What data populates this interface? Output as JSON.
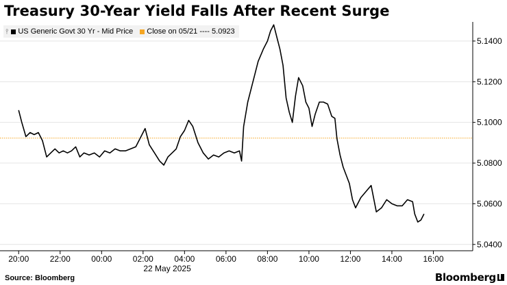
{
  "chart_data": {
    "type": "line",
    "title": "Treasury 30-Year Yield Falls After Recent Surge",
    "date_label": "22 May 2025",
    "source": "Source: Bloomberg",
    "brand": "Bloomberg",
    "legend": [
      {
        "label": "US Generic Govt 30 Yr - Mid Price",
        "color": "#000000"
      },
      {
        "label": "Close on 05/21 ---- 5.0923",
        "color": "#f5a623"
      }
    ],
    "x_unit": "hours relative to 22 May 2025 00:00",
    "x_ticks": [
      {
        "x": -4,
        "label": "20:00"
      },
      {
        "x": -2,
        "label": "22:00"
      },
      {
        "x": 0,
        "label": "00:00"
      },
      {
        "x": 2,
        "label": "02:00"
      },
      {
        "x": 4,
        "label": "04:00"
      },
      {
        "x": 6,
        "label": "06:00"
      },
      {
        "x": 8,
        "label": "08:00"
      },
      {
        "x": 10,
        "label": "10:00"
      },
      {
        "x": 12,
        "label": "12:00"
      },
      {
        "x": 14,
        "label": "14:00"
      },
      {
        "x": 16,
        "label": "16:00"
      }
    ],
    "y_ticks": [
      {
        "y": 5.14,
        "label": "5.1400"
      },
      {
        "y": 5.12,
        "label": "5.1200"
      },
      {
        "y": 5.1,
        "label": "5.1000"
      },
      {
        "y": 5.08,
        "label": "5.0800"
      },
      {
        "y": 5.06,
        "label": "5.0600"
      },
      {
        "y": 5.04,
        "label": "5.0400"
      }
    ],
    "xlim": [
      -4.9,
      17.9
    ],
    "ylim": [
      5.0369,
      5.1494
    ],
    "y_axis_side": "right",
    "grid": "horizontal",
    "reference_line": {
      "y": 5.0923,
      "color": "#f5a623",
      "style": "dotted"
    },
    "series": [
      {
        "name": "US Generic Govt 30 Yr - Mid Price",
        "color": "#000000",
        "x": [
          -4.0,
          -3.85,
          -3.65,
          -3.45,
          -3.25,
          -3.05,
          -2.85,
          -2.65,
          -2.45,
          -2.25,
          -2.05,
          -1.85,
          -1.65,
          -1.45,
          -1.25,
          -1.05,
          -0.85,
          -0.6,
          -0.35,
          -0.1,
          0.15,
          0.4,
          0.65,
          0.9,
          1.15,
          1.4,
          1.65,
          1.9,
          2.1,
          2.3,
          2.55,
          2.8,
          3.0,
          3.2,
          3.4,
          3.6,
          3.8,
          4.0,
          4.2,
          4.4,
          4.65,
          4.9,
          5.15,
          5.4,
          5.65,
          5.9,
          6.15,
          6.4,
          6.65,
          6.75,
          6.85,
          7.05,
          7.3,
          7.55,
          7.8,
          8.0,
          8.15,
          8.3,
          8.45,
          8.6,
          8.75,
          8.9,
          9.05,
          9.2,
          9.35,
          9.5,
          9.7,
          9.85,
          10.0,
          10.15,
          10.3,
          10.5,
          10.7,
          10.9,
          11.1,
          11.25,
          11.35,
          11.5,
          11.65,
          11.8,
          11.95,
          12.1,
          12.25,
          12.5,
          12.75,
          13.0,
          13.25,
          13.5,
          13.75,
          14.0,
          14.25,
          14.5,
          14.75,
          15.0,
          15.1,
          15.25,
          15.4,
          15.55
        ],
        "y": [
          5.106,
          5.1,
          5.093,
          5.095,
          5.094,
          5.095,
          5.091,
          5.083,
          5.085,
          5.087,
          5.085,
          5.086,
          5.085,
          5.086,
          5.088,
          5.083,
          5.085,
          5.084,
          5.085,
          5.083,
          5.086,
          5.085,
          5.087,
          5.086,
          5.086,
          5.087,
          5.088,
          5.093,
          5.097,
          5.089,
          5.085,
          5.081,
          5.079,
          5.083,
          5.085,
          5.087,
          5.093,
          5.096,
          5.101,
          5.098,
          5.09,
          5.085,
          5.082,
          5.084,
          5.083,
          5.085,
          5.086,
          5.085,
          5.086,
          5.081,
          5.098,
          5.11,
          5.12,
          5.13,
          5.136,
          5.14,
          5.145,
          5.148,
          5.142,
          5.136,
          5.128,
          5.112,
          5.105,
          5.1,
          5.113,
          5.122,
          5.118,
          5.11,
          5.107,
          5.098,
          5.104,
          5.11,
          5.11,
          5.109,
          5.103,
          5.102,
          5.092,
          5.084,
          5.078,
          5.074,
          5.07,
          5.062,
          5.058,
          5.063,
          5.066,
          5.069,
          5.056,
          5.058,
          5.062,
          5.06,
          5.059,
          5.059,
          5.062,
          5.061,
          5.055,
          5.051,
          5.052,
          5.055
        ]
      }
    ]
  }
}
